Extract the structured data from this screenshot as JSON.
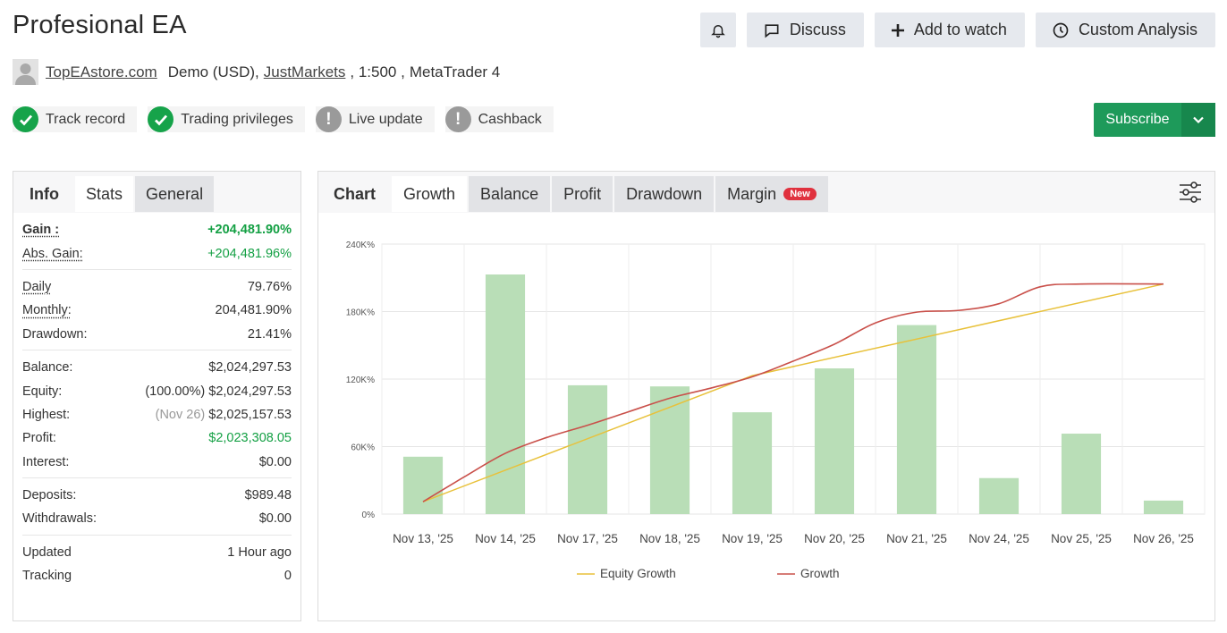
{
  "header": {
    "title": "Profesional EA",
    "discuss_label": "Discuss",
    "watch_label": "Add to watch",
    "analysis_label": "Custom Analysis"
  },
  "account": {
    "author": "TopEAstore.com",
    "type": "Demo (USD),",
    "broker": "JustMarkets",
    "leverage": ", 1:500 ,",
    "platform": "MetaTrader 4"
  },
  "badges": [
    {
      "label": "Track record",
      "status": "ok"
    },
    {
      "label": "Trading privileges",
      "status": "ok"
    },
    {
      "label": "Live update",
      "status": "warn"
    },
    {
      "label": "Cashback",
      "status": "warn"
    }
  ],
  "subscribe_label": "Subscribe",
  "left_tabs": [
    "Info",
    "Stats",
    "General"
  ],
  "stats": {
    "gain_label": "Gain :",
    "gain": "+204,481.90%",
    "abs_gain_label": "Abs. Gain:",
    "abs_gain": "+204,481.96%",
    "daily_label": "Daily",
    "daily": "79.76%",
    "monthly_label": "Monthly:",
    "monthly": "204,481.90%",
    "drawdown_label": "Drawdown:",
    "drawdown": "21.41%",
    "balance_label": "Balance:",
    "balance": "$2,024,297.53",
    "equity_label": "Equity:",
    "equity_pct": "(100.00%)",
    "equity": "$2,024,297.53",
    "highest_label": "Highest:",
    "highest_date": "(Nov 26)",
    "highest": "$2,025,157.53",
    "profit_label": "Profit:",
    "profit": "$2,023,308.05",
    "interest_label": "Interest:",
    "interest": "$0.00",
    "deposits_label": "Deposits:",
    "deposits": "$989.48",
    "withdrawals_label": "Withdrawals:",
    "withdrawals": "$0.00",
    "updated_label": "Updated",
    "updated": "1 Hour ago",
    "tracking_label": "Tracking",
    "tracking": "0"
  },
  "chart_tabs": {
    "chart": "Chart",
    "growth": "Growth",
    "balance": "Balance",
    "profit": "Profit",
    "drawdown": "Drawdown",
    "margin": "Margin",
    "new_tag": "New"
  },
  "colors": {
    "bar": "#b9deb7",
    "equity_line": "#e8c13a",
    "growth_line": "#c9504a",
    "green": "#14a044",
    "subscribe": "#1e9a5a"
  },
  "chart_data": {
    "type": "bar+line",
    "categories": [
      "Nov 13, '25",
      "Nov 14, '25",
      "Nov 17, '25",
      "Nov 18, '25",
      "Nov 19, '25",
      "Nov 20, '25",
      "Nov 21, '25",
      "Nov 24, '25",
      "Nov 25, '25",
      "Nov 26, '25"
    ],
    "y_ticks": [
      "0%",
      "60K%",
      "120K%",
      "180K%",
      "240K%"
    ],
    "ylim": [
      0,
      240000
    ],
    "bars": [
      51000,
      213000,
      114500,
      113500,
      90500,
      129500,
      168000,
      32000,
      71500,
      12000
    ],
    "series": [
      {
        "name": "Equity Growth",
        "points": [
          [
            0,
            11000
          ],
          [
            4,
            123000
          ],
          [
            9,
            204500
          ]
        ]
      },
      {
        "name": "Growth",
        "points": [
          [
            0,
            11000
          ],
          [
            0.5,
            33000
          ],
          [
            1,
            54000
          ],
          [
            1.5,
            68000
          ],
          [
            2,
            79000
          ],
          [
            2.5,
            91000
          ],
          [
            3,
            103000
          ],
          [
            3.5,
            112000
          ],
          [
            4,
            122000
          ],
          [
            4.5,
            136000
          ],
          [
            5,
            151000
          ],
          [
            5.5,
            170000
          ],
          [
            6,
            179500
          ],
          [
            6.5,
            181000
          ],
          [
            7,
            187000
          ],
          [
            7.5,
            202000
          ],
          [
            8,
            204500
          ],
          [
            9,
            204500
          ]
        ]
      }
    ],
    "legend": [
      "Equity Growth",
      "Growth"
    ],
    "grid": true,
    "legend_position": "bottom"
  }
}
